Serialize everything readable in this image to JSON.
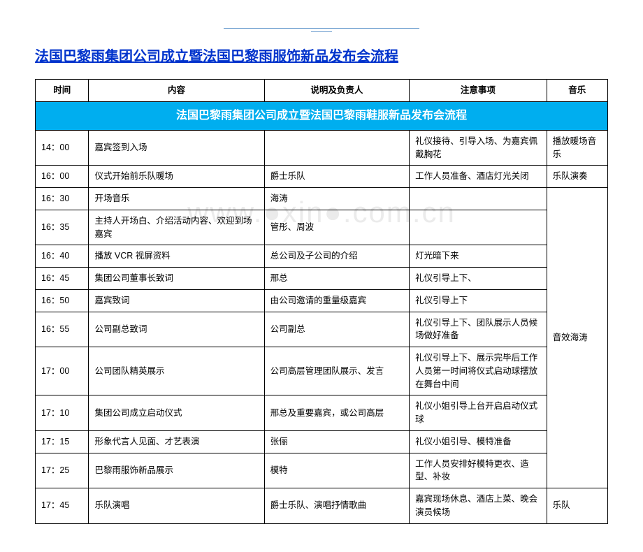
{
  "title": "法国巴黎雨集团公司成立暨法国巴黎雨服饰新品发布会流程",
  "watermark": "www.●xin●.com.cn",
  "header": {
    "time": "时间",
    "content": "内容",
    "person": "说明及负责人",
    "notes": "注意事项",
    "music": "音乐"
  },
  "banner": "法国巴黎雨集团公司成立暨法国巴黎雨鞋服新品发布会流程",
  "rows": [
    {
      "time": "14：00",
      "content": "嘉宾签到入场",
      "person": "",
      "notes": "礼仪接待、引导入场、为嘉宾佩戴胸花",
      "music": "播放暖场音乐"
    },
    {
      "time": "16：00",
      "content": "仪式开始前乐队暖场",
      "person": "爵士乐队",
      "notes": "工作人员准备、酒店灯光关闭",
      "music": "乐队演奏"
    },
    {
      "time": "16：30",
      "content": "开场音乐",
      "person": "海涛",
      "notes": "",
      "music": ""
    },
    {
      "time": "16：35",
      "content": "主持人开场白、介绍活动内容、欢迎到场嘉宾",
      "person": "管彤、周波",
      "notes": "",
      "music": ""
    },
    {
      "time": "16：40",
      "content": "播放 VCR 视屏资料",
      "person": "总公司及子公司的介绍",
      "notes": "灯光暗下来",
      "music": ""
    },
    {
      "time": "16：45",
      "content": "集团公司董事长致词",
      "person": "邢总",
      "notes": "礼仪引导上下、",
      "music": ""
    },
    {
      "time": "16：50",
      "content": "嘉宾致词",
      "person": "由公司邀请的重量级嘉宾",
      "notes": "礼仪引导上下",
      "music": ""
    },
    {
      "time": "16：55",
      "content": "公司副总致词",
      "person": "公司副总",
      "notes": "礼仪引导上下、团队展示人员候场做好准备",
      "music": ""
    },
    {
      "time": "17：00",
      "content": "公司团队精英展示",
      "person": "公司高层管理团队展示、发言",
      "notes": "礼仪引导上下、展示完毕后工作人员第一时间将仪式启动球摆放在舞台中间",
      "music": ""
    },
    {
      "time": "17：10",
      "content": "集团公司成立启动仪式",
      "person": "邢总及重要嘉宾，或公司高层",
      "notes": "礼仪小姐引导上台开启启动仪式球",
      "music": ""
    },
    {
      "time": "17：15",
      "content": "形象代言人见面、才艺表演",
      "person": "张俪",
      "notes": "礼仪小姐引导、模特准备",
      "music": ""
    },
    {
      "time": "17：25",
      "content": "巴黎雨服饰新品展示",
      "person": "模特",
      "notes": "工作人员安排好模特更衣、造型、补妆",
      "music": ""
    },
    {
      "time": "17：45",
      "content": "乐队演唱",
      "person": "爵士乐队、演唱抒情歌曲",
      "notes": "嘉宾现场休息、酒店上菜、晚会演员候场",
      "music": "乐队"
    }
  ],
  "merged_music": "音效海涛"
}
